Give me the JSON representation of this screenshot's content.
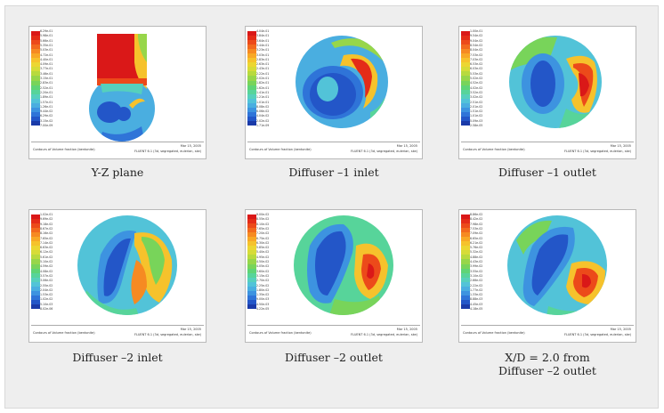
{
  "figure": {
    "panels": [
      {
        "caption": "Y-Z plane",
        "footer_left": "Contours of Volume fraction (bentonite)",
        "footer_date": "Mar 15, 2005",
        "footer_software": "FLUENT 6.1 (3d, segregated, eulerian, ske)",
        "colorbar_labels": [
          "6.29e-01",
          "5.98e-01",
          "5.66e-01",
          "5.35e-01",
          "5.03e-01",
          "4.72e-01",
          "4.40e-01",
          "4.09e-01",
          "3.77e-01",
          "3.46e-01",
          "3.15e-01",
          "2.83e-01",
          "2.52e-01",
          "2.20e-01",
          "1.89e-01",
          "1.57e-01",
          "1.26e-01",
          "9.44e-02",
          "6.29e-02",
          "3.15e-02",
          "7.00e-09"
        ]
      },
      {
        "caption": "Diffuser –1 inlet",
        "footer_left": "Contours of Volume fraction (bentonite)",
        "footer_date": "Mar 15, 2005",
        "footer_software": "FLUENT 6.1 (3d, segregated, eulerian, ske)",
        "colorbar_labels": [
          "4.04e-01",
          "3.84e-01",
          "3.64e-01",
          "3.44e-01",
          "3.23e-01",
          "3.03e-01",
          "2.83e-01",
          "2.63e-01",
          "2.43e-01",
          "2.22e-01",
          "2.02e-01",
          "1.82e-01",
          "1.62e-01",
          "1.41e-01",
          "1.21e-01",
          "1.01e-01",
          "8.08e-02",
          "6.06e-02",
          "4.04e-02",
          "2.02e-02",
          "1.71e-09"
        ]
      },
      {
        "caption": "Diffuser –1 outlet",
        "footer_left": "Contours of Volume fraction (bentonite)",
        "footer_date": "Mar 15, 2005",
        "footer_software": "FLUENT 6.1 (3d, segregated, eulerian, ske)",
        "colorbar_labels": [
          "1.00e-01",
          "9.54e-02",
          "9.04e-02",
          "8.54e-02",
          "8.04e-02",
          "7.53e-02",
          "7.03e-02",
          "6.53e-02",
          "6.03e-02",
          "5.53e-02",
          "5.02e-02",
          "4.52e-02",
          "4.02e-02",
          "3.52e-02",
          "3.02e-02",
          "2.51e-02",
          "2.01e-02",
          "1.51e-02",
          "1.01e-02",
          "5.09e-03",
          "2.58e-05"
        ]
      },
      {
        "caption": "Diffuser –2 inlet",
        "footer_left": "Contours of Volume fraction (bentonite)",
        "footer_date": "Mar 15, 2005",
        "footer_software": "FLUENT 6.1 (3d, segregated, eulerian, ske)",
        "colorbar_labels": [
          "1.02e-01",
          "9.69e-02",
          "9.18e-02",
          "8.67e-02",
          "8.16e-02",
          "7.65e-02",
          "7.14e-02",
          "6.63e-02",
          "6.12e-02",
          "5.61e-02",
          "5.10e-02",
          "4.59e-02",
          "4.08e-02",
          "3.57e-02",
          "3.06e-02",
          "2.55e-02",
          "2.04e-02",
          "1.53e-02",
          "1.02e-02",
          "5.10e-03",
          "8.02e-06"
        ]
      },
      {
        "caption": "Diffuser –2 outlet",
        "footer_left": "Contours of Volume fraction (bentonite)",
        "footer_date": "Mar 15, 2005",
        "footer_software": "FLUENT 6.1 (3d, segregated, eulerian, ske)",
        "colorbar_labels": [
          "9.00e-02",
          "8.55e-02",
          "8.10e-02",
          "7.65e-02",
          "7.20e-02",
          "6.75e-02",
          "6.30e-02",
          "5.85e-02",
          "5.40e-02",
          "4.95e-02",
          "4.50e-02",
          "4.05e-02",
          "3.60e-02",
          "3.15e-02",
          "2.70e-02",
          "2.25e-02",
          "1.80e-02",
          "1.35e-02",
          "9.00e-03",
          "4.50e-03",
          "4.22e-05"
        ]
      },
      {
        "caption_line1": "X/D = 2.0 from",
        "caption_line2": "Diffuser –2 outlet",
        "footer_left": "Contours of Volume fraction (bentonite)",
        "footer_date": "Mar 15, 2005",
        "footer_software": "FLUENT 6.1 (3d, segregated, eulerian, ske)",
        "colorbar_labels": [
          "8.86e-02",
          "8.42e-02",
          "7.98e-02",
          "7.53e-02",
          "7.09e-02",
          "6.65e-02",
          "6.21e-02",
          "5.76e-02",
          "5.32e-02",
          "4.88e-02",
          "4.43e-02",
          "3.99e-02",
          "3.55e-02",
          "3.10e-02",
          "2.66e-02",
          "2.22e-02",
          "1.77e-02",
          "1.33e-02",
          "8.88e-03",
          "4.45e-03",
          "4.18e-05"
        ]
      }
    ],
    "colormap": [
      "#1a3aa8",
      "#2356c8",
      "#2f74d8",
      "#3d93e0",
      "#4aaee0",
      "#52c3d8",
      "#56d0bc",
      "#57d49a",
      "#5fd476",
      "#78d45a",
      "#97d64a",
      "#b8da3e",
      "#d6dc38",
      "#ecd632",
      "#f6c22c",
      "#f8a826",
      "#f68a22",
      "#f26a1e",
      "#ec4a1a",
      "#e42c18",
      "#da1818"
    ]
  }
}
